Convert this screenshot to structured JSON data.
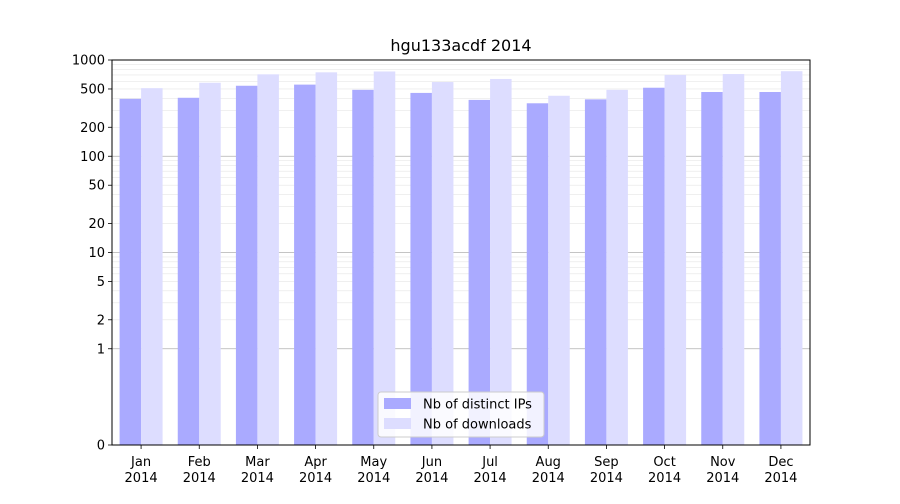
{
  "chart_data": {
    "type": "bar",
    "title": "hgu133acdf 2014",
    "xlabel": "",
    "ylabel": "",
    "yscale": "symlog",
    "ylim": [
      0,
      1000
    ],
    "y_ticks": [
      0,
      1,
      2,
      5,
      10,
      20,
      50,
      100,
      200,
      500,
      1000
    ],
    "y_tick_labels": [
      "0",
      "1",
      "2",
      "5",
      "10",
      "20",
      "50",
      "100",
      "200",
      "500",
      "1000"
    ],
    "grid": true,
    "legend_position": "bottom-center",
    "categories": [
      [
        "Jan",
        "2014"
      ],
      [
        "Feb",
        "2014"
      ],
      [
        "Mar",
        "2014"
      ],
      [
        "Apr",
        "2014"
      ],
      [
        "May",
        "2014"
      ],
      [
        "Jun",
        "2014"
      ],
      [
        "Jul",
        "2014"
      ],
      [
        "Aug",
        "2014"
      ],
      [
        "Sep",
        "2014"
      ],
      [
        "Oct",
        "2014"
      ],
      [
        "Nov",
        "2014"
      ],
      [
        "Dec",
        "2014"
      ]
    ],
    "series": [
      {
        "name": "Nb of distinct IPs",
        "color": "#aaaaff",
        "values": [
          395,
          405,
          540,
          555,
          490,
          455,
          385,
          355,
          390,
          515,
          465,
          465
        ]
      },
      {
        "name": "Nb of downloads",
        "color": "#ddddff",
        "values": [
          510,
          580,
          710,
          745,
          760,
          590,
          635,
          425,
          490,
          700,
          715,
          765
        ]
      }
    ]
  }
}
